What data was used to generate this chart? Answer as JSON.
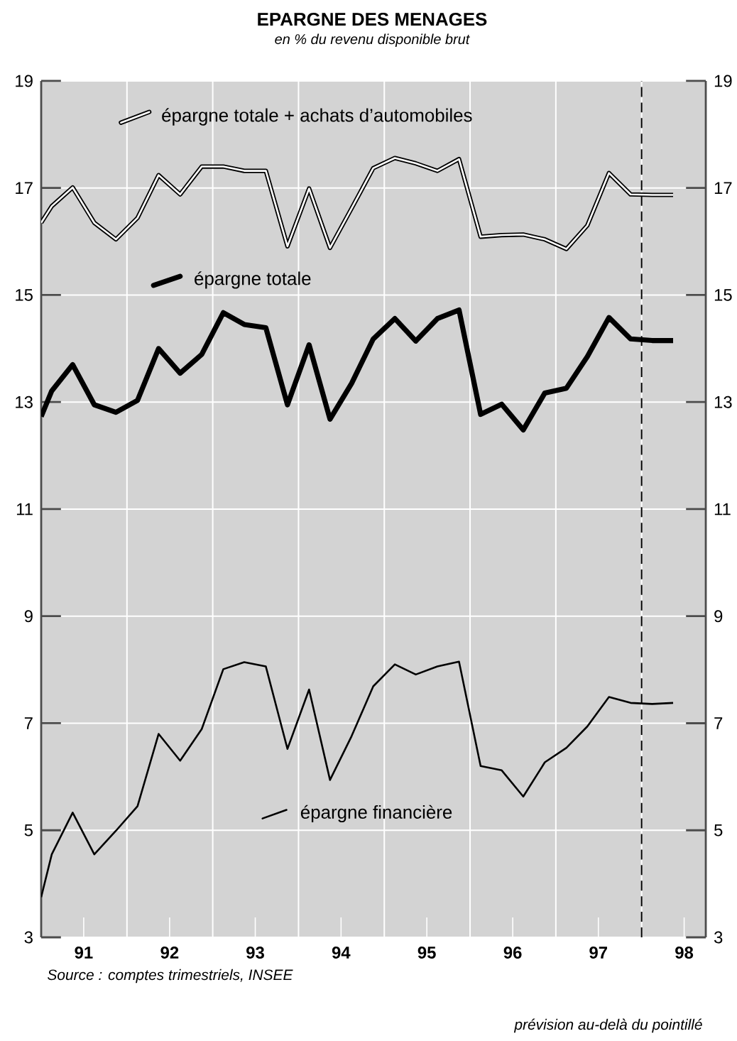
{
  "chart_data": {
    "type": "line",
    "title": "EPARGNE DES MENAGES",
    "subtitle": "en % du revenu disponible brut",
    "x": [
      "1991-01-01",
      "1991-02-15",
      "1991-05-15",
      "1991-08-15",
      "1991-11-15",
      "1992-02-15",
      "1992-05-15",
      "1992-08-15",
      "1992-11-15",
      "1993-02-15",
      "1993-05-15",
      "1993-08-15",
      "1993-11-15",
      "1994-02-15",
      "1994-05-15",
      "1994-08-15",
      "1994-11-15",
      "1995-02-15",
      "1995-05-15",
      "1995-08-15",
      "1995-11-15",
      "1996-02-15",
      "1996-05-15",
      "1996-08-15",
      "1996-11-15",
      "1997-02-15",
      "1997-05-15",
      "1997-08-15",
      "1997-11-15",
      "1998-02-15",
      "1998-05-15"
    ],
    "series": [
      {
        "name": "épargne totale + achats d’automobiles",
        "color": "#000000",
        "values": [
          16.35,
          16.66,
          17.01,
          16.35,
          16.04,
          16.44,
          17.24,
          16.88,
          17.4,
          17.4,
          17.32,
          17.32,
          15.91,
          16.99,
          15.88,
          16.62,
          17.37,
          17.56,
          17.46,
          17.32,
          17.54,
          16.09,
          16.12,
          16.13,
          16.04,
          15.86,
          16.3,
          17.28,
          16.88,
          16.87,
          16.87
        ]
      },
      {
        "name": "épargne totale",
        "color": "#000000",
        "values": [
          12.73,
          13.21,
          13.7,
          12.95,
          12.81,
          13.03,
          14.0,
          13.54,
          13.89,
          14.67,
          14.45,
          14.39,
          12.95,
          14.07,
          12.68,
          13.35,
          14.18,
          14.56,
          14.14,
          14.56,
          14.72,
          12.77,
          12.96,
          12.48,
          13.17,
          13.26,
          13.85,
          14.58,
          14.18,
          14.15,
          14.15
        ]
      },
      {
        "name": "épargne financière",
        "color": "#000000",
        "values": [
          3.75,
          4.55,
          5.33,
          4.55,
          4.99,
          5.45,
          6.8,
          6.3,
          6.89,
          8.01,
          8.14,
          8.06,
          6.52,
          7.63,
          5.94,
          6.76,
          7.69,
          8.1,
          7.91,
          8.06,
          8.15,
          6.2,
          6.12,
          5.63,
          6.27,
          6.54,
          6.94,
          7.49,
          7.38,
          7.36,
          7.38
        ]
      }
    ],
    "xlim": [
      "1991-01-01",
      "1998-10-01"
    ],
    "xticks": [
      {
        "value": "1991-07-01",
        "label": "91"
      },
      {
        "value": "1992-07-01",
        "label": "92"
      },
      {
        "value": "1993-07-01",
        "label": "93"
      },
      {
        "value": "1994-07-01",
        "label": "94"
      },
      {
        "value": "1995-07-01",
        "label": "95"
      },
      {
        "value": "1996-07-01",
        "label": "96"
      },
      {
        "value": "1997-07-01",
        "label": "97"
      },
      {
        "value": "1998-07-01",
        "label": "98"
      },
      {
        "value": "1992-01-01",
        "label": null
      },
      {
        "value": "1993-01-01",
        "label": null
      },
      {
        "value": "1994-01-01",
        "label": null
      },
      {
        "value": "1995-01-01",
        "label": null
      },
      {
        "value": "1996-01-01",
        "label": null
      },
      {
        "value": "1997-01-01",
        "label": null
      },
      {
        "value": "1998-01-01",
        "label": null
      }
    ],
    "ylim": [
      3,
      19
    ],
    "yticks": [
      3,
      5,
      7,
      9,
      11,
      13,
      15,
      17,
      19
    ],
    "y2lim": [
      3,
      19
    ],
    "y2ticks": [
      3,
      5,
      7,
      9,
      11,
      13,
      15,
      17,
      19
    ],
    "grid": true,
    "line_style": "solid",
    "marker": "none",
    "legend": "top left",
    "ref_lines": [
      {
        "axis": "x",
        "value": "1998-01-01",
        "line_style": "dashed"
      }
    ],
    "annotations": [
      "Source : comptes trimestriels, INSEE",
      "prévision au-delà du pointillé"
    ]
  }
}
